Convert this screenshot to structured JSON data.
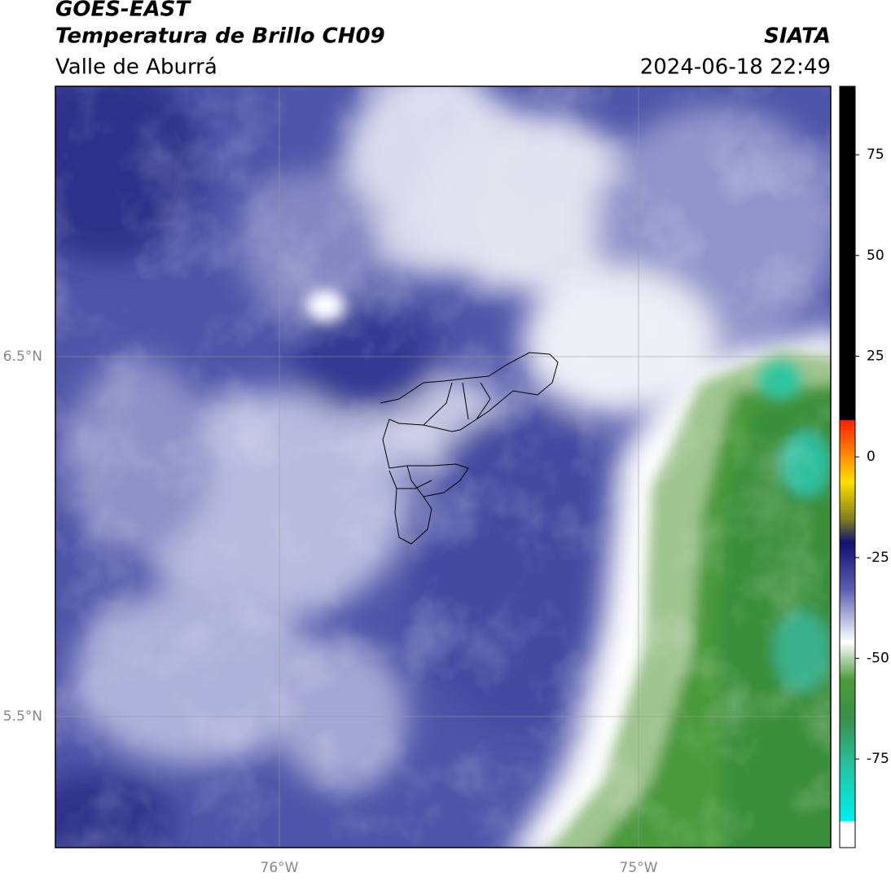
{
  "header": {
    "title": "GOES-EAST",
    "subtitle": "Temperatura de Brillo CH09",
    "region": "Valle de Aburrá",
    "source": "SIATA",
    "datetime": "2024-06-18 22:49"
  },
  "map": {
    "lat_labels": [
      "6.5°N",
      "5.5°N"
    ],
    "lon_labels": [
      "76°W",
      "75°W"
    ]
  },
  "colorbar": {
    "range": [
      -97,
      92
    ],
    "ticks": [
      75,
      50,
      25,
      0,
      -25,
      -50,
      -75
    ]
  }
}
